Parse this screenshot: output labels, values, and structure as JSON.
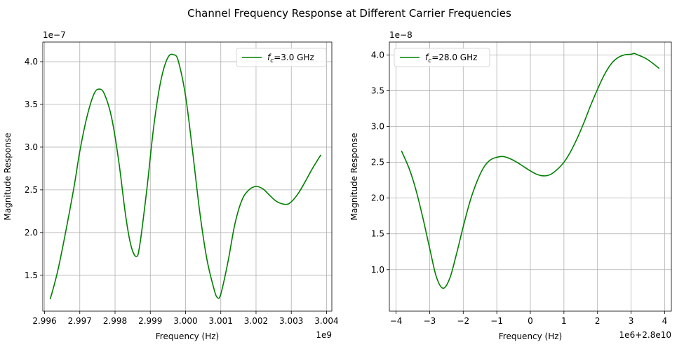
{
  "figure": {
    "title": "Channel Frequency Response at Different Carrier Frequencies",
    "line_color": "#008000",
    "grid_color": "#b0b0b0"
  },
  "chart_data": [
    {
      "type": "line",
      "xlabel": "Frequency (Hz)",
      "ylabel": "Magnitude Response",
      "x_offset_label": "1e9",
      "y_offset_label": "1e−7",
      "xlim": [
        2.99595,
        3.00415
      ],
      "ylim": [
        1.08,
        4.23
      ],
      "x_ticks": [
        2.996,
        2.997,
        2.998,
        2.999,
        3.0,
        3.001,
        3.002,
        3.003,
        3.004
      ],
      "x_tick_labels": [
        "2.996",
        "2.997",
        "2.998",
        "2.999",
        "3.000",
        "3.001",
        "3.002",
        "3.003",
        "3.004"
      ],
      "y_ticks": [
        1.5,
        2.0,
        2.5,
        3.0,
        3.5,
        4.0
      ],
      "y_tick_labels": [
        "1.5",
        "2.0",
        "2.5",
        "3.0",
        "3.5",
        "4.0"
      ],
      "grid": true,
      "legend_placement": "upper right",
      "series": [
        {
          "name_prefix": "f",
          "name_sub": "c",
          "name_suffix": "=3.0 GHz",
          "x": [
            2.99616,
            2.9964,
            2.9968,
            2.997,
            2.9972,
            2.9974,
            2.99755,
            2.9977,
            2.9979,
            2.9981,
            2.9983,
            2.99845,
            2.9986,
            2.9987,
            2.9989,
            2.9991,
            2.9993,
            2.9995,
            2.99968,
            2.9998,
            3.0,
            3.0002,
            3.0004,
            3.0006,
            3.0008,
            3.0009,
            3.001,
            3.0012,
            3.0014,
            3.0016,
            3.0018,
            3.002,
            3.0022,
            3.0024,
            3.0026,
            3.00285,
            3.003,
            3.0032,
            3.0034,
            3.0036,
            3.00384
          ],
          "y": [
            1.22,
            1.6,
            2.45,
            2.95,
            3.35,
            3.62,
            3.68,
            3.62,
            3.35,
            2.85,
            2.2,
            1.85,
            1.72,
            1.85,
            2.5,
            3.25,
            3.78,
            4.05,
            4.08,
            4.0,
            3.6,
            2.95,
            2.25,
            1.7,
            1.35,
            1.24,
            1.28,
            1.65,
            2.1,
            2.38,
            2.5,
            2.54,
            2.51,
            2.43,
            2.36,
            2.33,
            2.36,
            2.46,
            2.6,
            2.75,
            2.91
          ]
        }
      ]
    },
    {
      "type": "line",
      "xlabel": "Frequency (Hz)",
      "ylabel": "Magnitude Response",
      "x_offset_label": "1e6+2.8e10",
      "y_offset_label": "1e−8",
      "xlim": [
        -4.2,
        4.2
      ],
      "ylim": [
        0.42,
        4.18
      ],
      "x_ticks": [
        -4,
        -3,
        -2,
        -1,
        0,
        1,
        2,
        3,
        4
      ],
      "x_tick_labels": [
        "−4",
        "−3",
        "−2",
        "−1",
        "0",
        "1",
        "2",
        "3",
        "4"
      ],
      "y_ticks": [
        1.0,
        1.5,
        2.0,
        2.5,
        3.0,
        3.5,
        4.0
      ],
      "y_tick_labels": [
        "1.0",
        "1.5",
        "2.0",
        "2.5",
        "3.0",
        "3.5",
        "4.0"
      ],
      "grid": true,
      "legend_placement": "upper left",
      "series": [
        {
          "name_prefix": "f",
          "name_sub": "c",
          "name_suffix": "=28.0 GHz",
          "x": [
            -3.84,
            -3.6,
            -3.4,
            -3.2,
            -3.0,
            -2.8,
            -2.6,
            -2.4,
            -2.2,
            -2.0,
            -1.8,
            -1.6,
            -1.4,
            -1.2,
            -1.0,
            -0.8,
            -0.6,
            -0.4,
            -0.2,
            0.0,
            0.2,
            0.4,
            0.6,
            0.8,
            1.0,
            1.2,
            1.4,
            1.6,
            1.8,
            2.0,
            2.2,
            2.4,
            2.6,
            2.8,
            3.0,
            3.1,
            3.2,
            3.4,
            3.6,
            3.84
          ],
          "y": [
            2.66,
            2.4,
            2.1,
            1.72,
            1.3,
            0.9,
            0.74,
            0.88,
            1.22,
            1.6,
            1.95,
            2.22,
            2.42,
            2.53,
            2.57,
            2.58,
            2.55,
            2.5,
            2.44,
            2.38,
            2.33,
            2.31,
            2.33,
            2.4,
            2.5,
            2.65,
            2.84,
            3.06,
            3.3,
            3.52,
            3.72,
            3.87,
            3.96,
            4.0,
            4.01,
            4.02,
            4.0,
            3.96,
            3.9,
            3.81
          ]
        }
      ]
    }
  ]
}
